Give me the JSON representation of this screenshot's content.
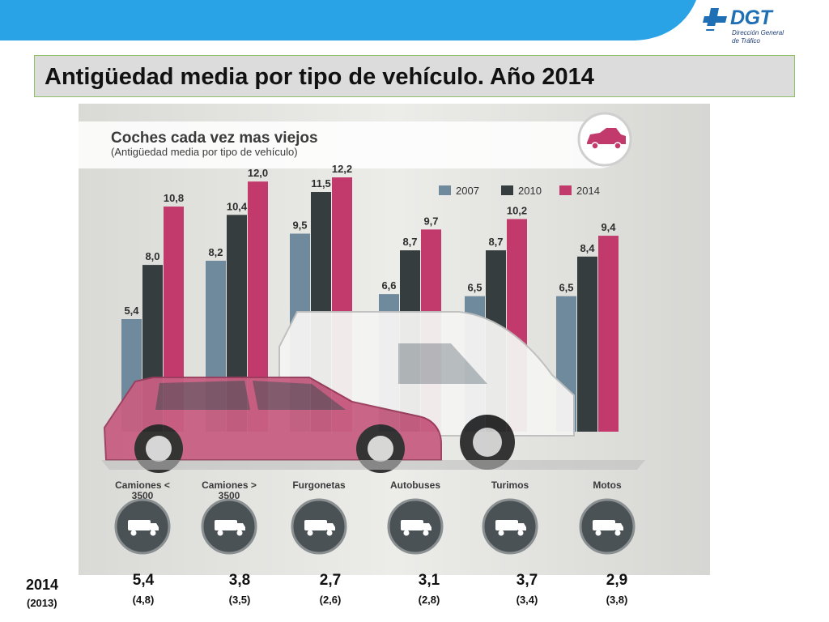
{
  "brand": {
    "name": "DGT",
    "subtitle_line1": "Dirección General",
    "subtitle_line2": "de Tráfico",
    "band_color": "#2aa3e6",
    "logo_color": "#1f6fb4"
  },
  "page": {
    "title": "Antigüedad media por tipo de vehículo. Año 2014"
  },
  "chart_data": {
    "type": "bar",
    "title": "Coches cada vez mas viejos",
    "subtitle": "(Antigüedad media por tipo de vehículo)",
    "categories": [
      "Camiones <\n3500",
      "Camiones >\n3500",
      "Furgonetas",
      "Autobuses",
      "Turimos",
      "Motos"
    ],
    "category_icons": [
      "small-truck-icon",
      "large-truck-icon",
      "van-icon",
      "bus-icon",
      "car-icon",
      "motorcycle-icon"
    ],
    "series": [
      {
        "name": "2007",
        "color": "#6f8a9c",
        "values": [
          5.4,
          8.2,
          9.5,
          6.6,
          6.5,
          6.5
        ],
        "labels": [
          "5,4",
          "8,2",
          "9,5",
          "6,6",
          "6,5",
          "6,5"
        ]
      },
      {
        "name": "2010",
        "color": "#353d3f",
        "values": [
          8.0,
          10.4,
          11.5,
          8.7,
          8.7,
          8.4
        ],
        "labels": [
          "8,0",
          "10,4",
          "11,5",
          "8,7",
          "8,7",
          "8,4"
        ]
      },
      {
        "name": "2014",
        "color": "#c23a6c",
        "values": [
          10.8,
          12.0,
          12.2,
          9.7,
          10.2,
          9.4
        ],
        "labels": [
          "10,8",
          "12,0",
          "12,2",
          "9,7",
          "10,2",
          "9,4"
        ]
      }
    ],
    "legend_position": "top-right",
    "ylim": [
      0,
      12.2
    ],
    "xlabel": "",
    "ylabel": ""
  },
  "stats": {
    "year_label": "2014",
    "prev_year_label": "(2013)",
    "values": [
      "5,4",
      "3,8",
      "2,7",
      "3,1",
      "3,7",
      "2,9"
    ],
    "prev_values": [
      "(4,8)",
      "(3,5)",
      "(2,6)",
      "(2,8)",
      "(3,4)",
      "(3,8)"
    ]
  }
}
